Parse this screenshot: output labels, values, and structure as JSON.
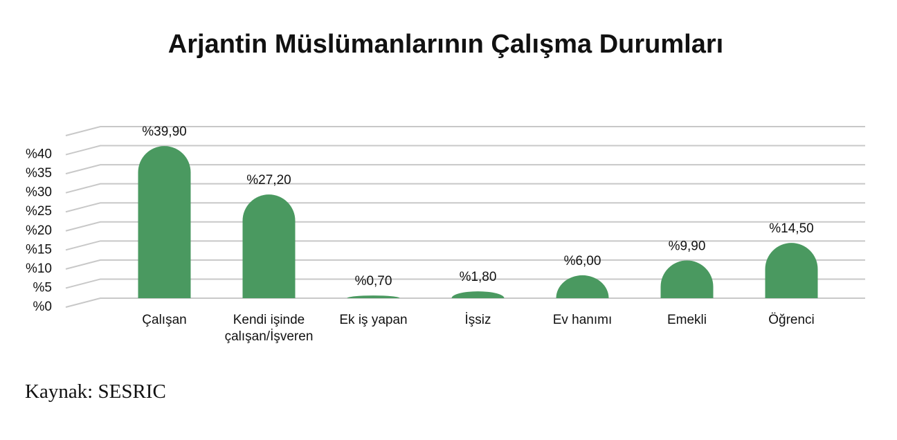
{
  "chart_data": {
    "type": "bar",
    "title": "Arjantin Müslümanlarının Çalışma Durumları",
    "categories": [
      "Çalışan",
      "Kendi işinde\nçalışan/İşveren",
      "Ek iş yapan",
      "İşsiz",
      "Ev hanımı",
      "Emekli",
      "Öğrenci"
    ],
    "values": [
      39.9,
      27.2,
      0.7,
      1.8,
      6.0,
      9.9,
      14.5
    ],
    "value_labels": [
      "%39,90",
      "%27,20",
      "%0,70",
      "%1,80",
      "%6,00",
      "%9,90",
      "%14,50"
    ],
    "color": "#4a9960",
    "ylim": [
      0,
      45
    ],
    "yticks": [
      {
        "value": 0,
        "label": "%0"
      },
      {
        "value": 5,
        "label": "%5"
      },
      {
        "value": 10,
        "label": "%10"
      },
      {
        "value": 15,
        "label": "%15"
      },
      {
        "value": 20,
        "label": "%20"
      },
      {
        "value": 25,
        "label": "%25"
      },
      {
        "value": 30,
        "label": "%30"
      },
      {
        "value": 35,
        "label": "%35"
      },
      {
        "value": 40,
        "label": "%40"
      }
    ],
    "grid": true,
    "source": "Kaynak: SESRIC"
  }
}
